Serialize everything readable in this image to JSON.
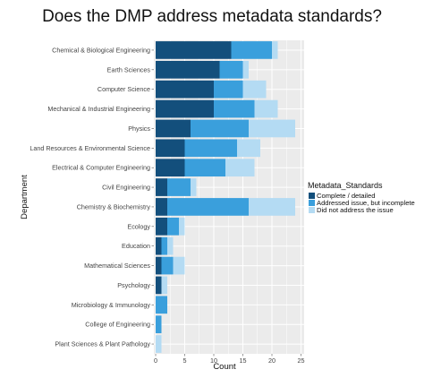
{
  "chart_data": {
    "type": "bar",
    "orientation": "horizontal",
    "stacked": true,
    "title": "Does the DMP address metadata standards?",
    "xlabel": "Count",
    "ylabel": "Department",
    "xlim": [
      0,
      25
    ],
    "xticks": [
      0,
      5,
      10,
      15,
      20,
      25
    ],
    "grid": true,
    "categories": [
      "Chemical & Biological Engineering",
      "Earth Sciences",
      "Computer Science",
      "Mechanical & Industrial Engineering",
      "Physics",
      "Land Resources & Environmental Science",
      "Electrical & Computer Engineering",
      "Civil Engineering",
      "Chemistry & Biochemistry",
      "Ecology",
      "Education",
      "Mathematical Sciences",
      "Psychology",
      "Microbiology & Immunology",
      "College of Engineering",
      "Plant Sciences & Plant Pathology"
    ],
    "series": [
      {
        "name": "Complete / detailed",
        "color": "#134f7c",
        "values": [
          13,
          11,
          10,
          10,
          6,
          5,
          5,
          2,
          2,
          2,
          1,
          1,
          1,
          0,
          0,
          0
        ]
      },
      {
        "name": "Addressed issue, but incomplete",
        "color": "#3a9fdc",
        "values": [
          7,
          4,
          5,
          7,
          10,
          9,
          7,
          4,
          14,
          2,
          1,
          2,
          0,
          2,
          1,
          0
        ]
      },
      {
        "name": "Did not address the issue",
        "color": "#b4dbf3",
        "values": [
          1,
          1,
          4,
          4,
          8,
          4,
          5,
          1,
          8,
          1,
          1,
          2,
          1,
          0,
          0,
          1
        ]
      }
    ],
    "legend": {
      "title": "Metadata_Standards",
      "position": "right"
    }
  }
}
